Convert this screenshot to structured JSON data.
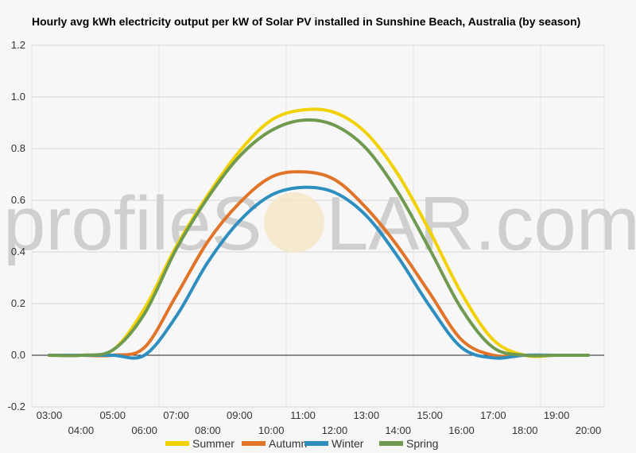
{
  "chart_data": {
    "type": "line",
    "title": "Hourly avg kWh electricity output per kW of Solar PV installed in Sunshine Beach, Australia (by season)",
    "xlabel": "",
    "ylabel": "",
    "ylim": [
      -0.2,
      1.2
    ],
    "yticks": [
      "-0.2",
      "0.0",
      "0.2",
      "0.4",
      "0.6",
      "0.8",
      "1.0",
      "1.2"
    ],
    "x": [
      "03:00",
      "04:00",
      "05:00",
      "06:00",
      "07:00",
      "08:00",
      "09:00",
      "10:00",
      "11:00",
      "12:00",
      "13:00",
      "14:00",
      "15:00",
      "16:00",
      "17:00",
      "18:00",
      "19:00",
      "20:00"
    ],
    "grid": true,
    "legend": "bottom",
    "series": [
      {
        "name": "Summer",
        "color": "#f2d100",
        "values": [
          0.0,
          0.0,
          0.02,
          0.18,
          0.42,
          0.62,
          0.79,
          0.91,
          0.95,
          0.94,
          0.86,
          0.7,
          0.48,
          0.24,
          0.06,
          0.0,
          0.0,
          0.0
        ]
      },
      {
        "name": "Autumn",
        "color": "#e2742a",
        "values": [
          0.0,
          0.0,
          0.0,
          0.03,
          0.23,
          0.44,
          0.59,
          0.69,
          0.71,
          0.68,
          0.57,
          0.42,
          0.24,
          0.06,
          0.0,
          0.0,
          0.0,
          0.0
        ]
      },
      {
        "name": "Winter",
        "color": "#2f8ec0",
        "values": [
          0.0,
          0.0,
          0.0,
          0.0,
          0.15,
          0.36,
          0.52,
          0.62,
          0.65,
          0.63,
          0.54,
          0.38,
          0.19,
          0.03,
          -0.01,
          0.0,
          0.0,
          0.0
        ]
      },
      {
        "name": "Spring",
        "color": "#6f9a50",
        "values": [
          0.0,
          0.0,
          0.02,
          0.16,
          0.41,
          0.61,
          0.77,
          0.87,
          0.91,
          0.89,
          0.8,
          0.63,
          0.41,
          0.18,
          0.03,
          0.0,
          0.0,
          0.0
        ]
      }
    ]
  },
  "watermark": {
    "text_left": "profileS",
    "text_right": "LAR.com"
  }
}
